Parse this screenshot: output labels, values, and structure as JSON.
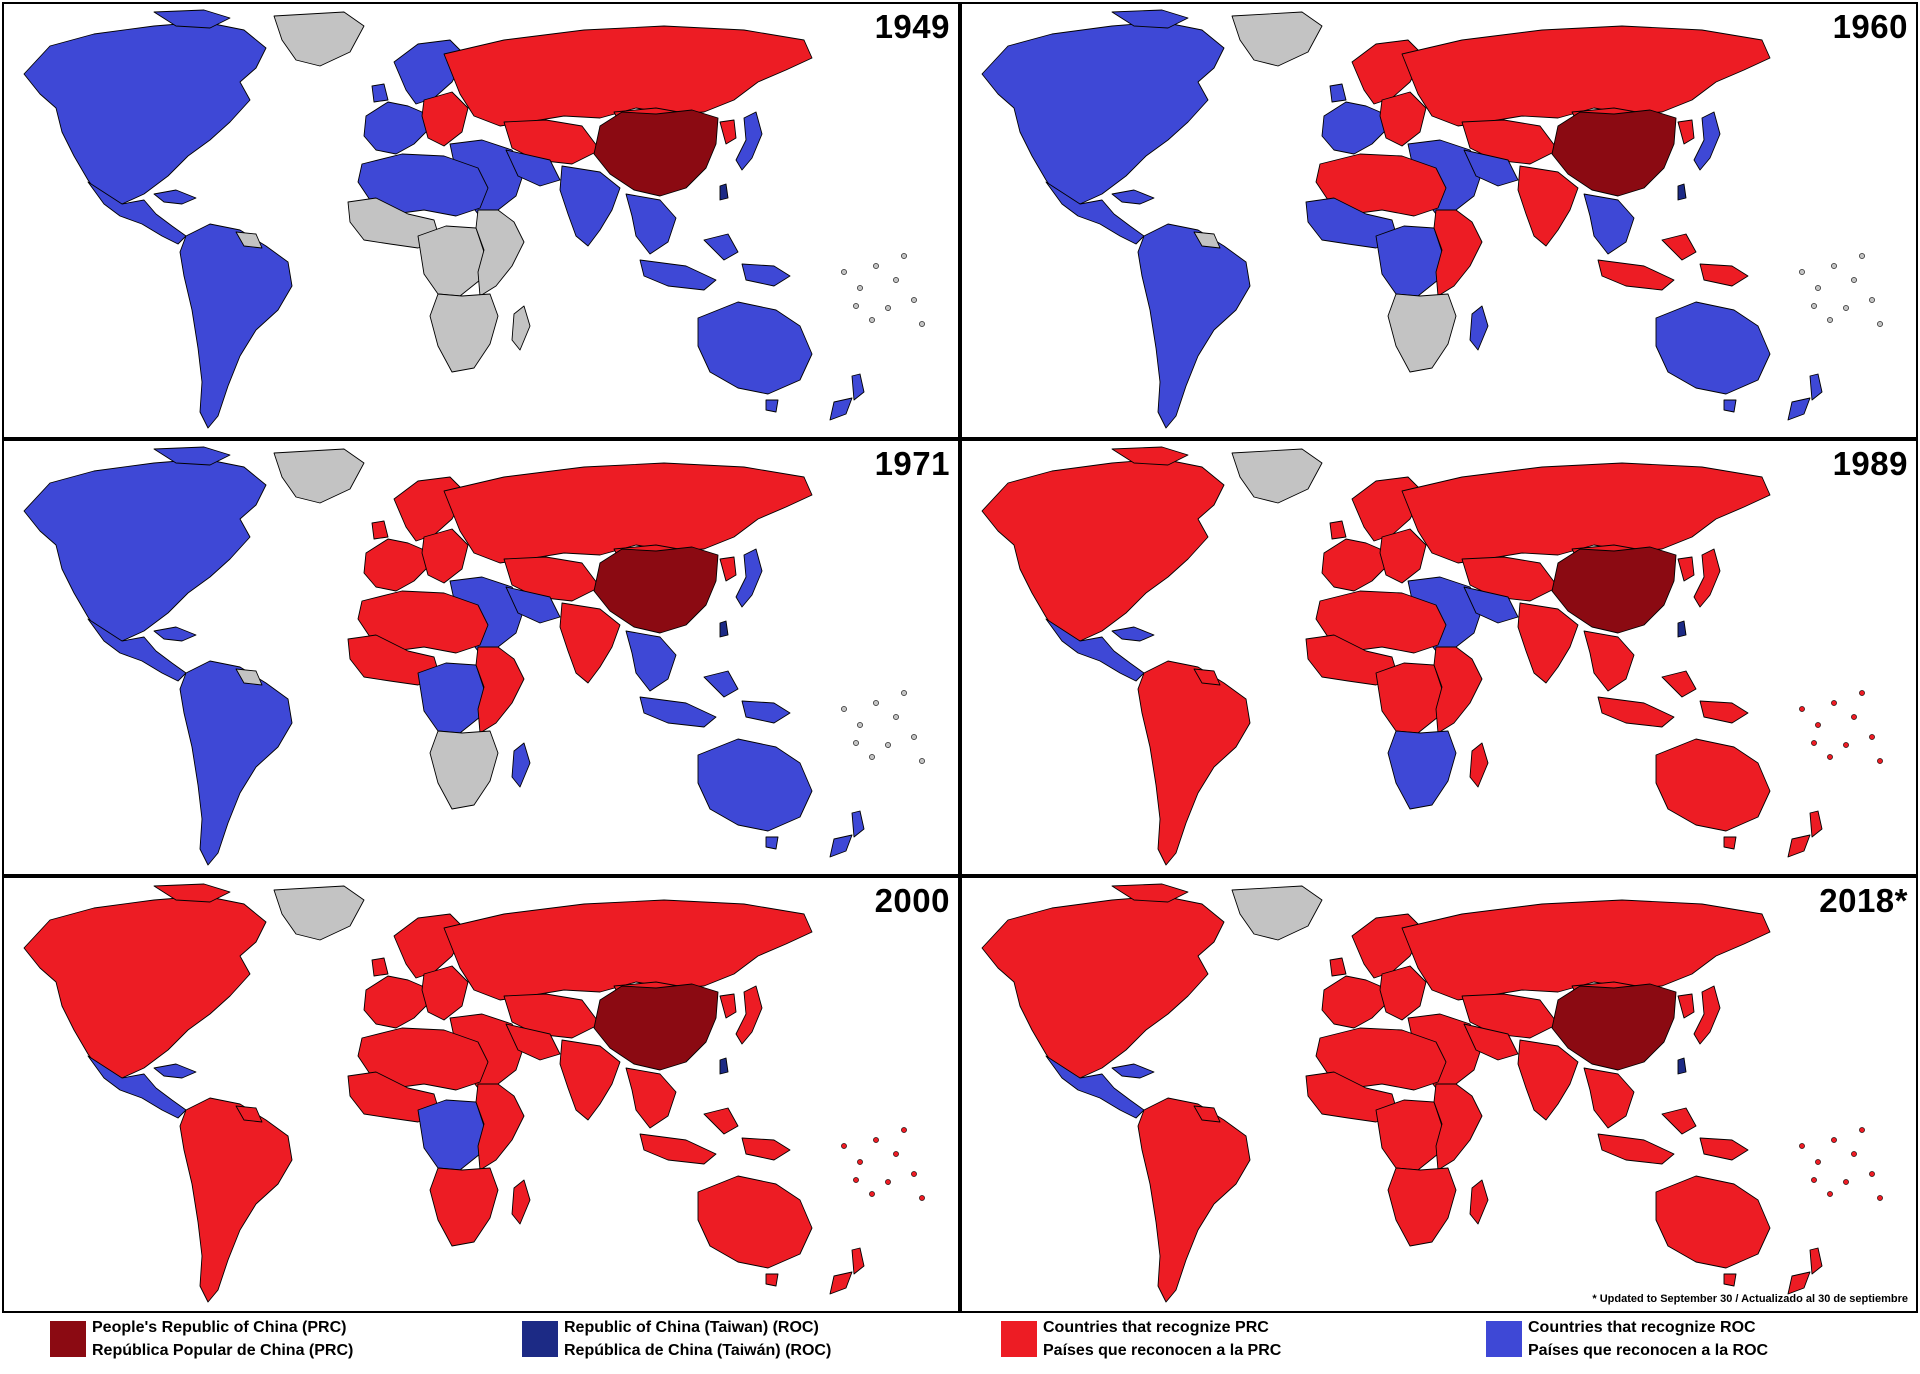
{
  "colors": {
    "prc": "#8b0a12",
    "roc": "#1c2a85",
    "recognize_prc": "#ed1c24",
    "recognize_roc": "#3e48d6",
    "none": "#c3c3c3",
    "border": "#000000"
  },
  "panels": [
    {
      "year": "1949",
      "regions": {
        "north_america": "recognize_roc",
        "greenland": "none",
        "mexico_central": "recognize_roc",
        "south_america": "recognize_roc",
        "guianas": "none",
        "europe_west": "recognize_roc",
        "scandinavia": "recognize_roc",
        "europe_east": "recognize_prc",
        "russia": "recognize_prc",
        "china": "prc",
        "taiwan": "roc",
        "mongolia": "recognize_prc",
        "korea_north": "recognize_prc",
        "japan": "recognize_roc",
        "middle_east": "recognize_roc",
        "central_asia": "recognize_prc",
        "india": "recognize_roc",
        "southeast_asia": "recognize_roc",
        "indonesia": "recognize_roc",
        "north_africa": "recognize_roc",
        "west_africa": "none",
        "central_africa": "none",
        "east_africa": "none",
        "southern_africa": "none",
        "madagascar": "none",
        "australia": "recognize_roc",
        "new_zealand": "recognize_roc",
        "pacific": "none"
      }
    },
    {
      "year": "1960",
      "regions": {
        "north_america": "recognize_roc",
        "greenland": "none",
        "mexico_central": "recognize_roc",
        "south_america": "recognize_roc",
        "guianas": "none",
        "europe_west": "recognize_roc",
        "scandinavia": "recognize_prc",
        "europe_east": "recognize_prc",
        "russia": "recognize_prc",
        "china": "prc",
        "taiwan": "roc",
        "mongolia": "recognize_prc",
        "korea_north": "recognize_prc",
        "japan": "recognize_roc",
        "middle_east": "recognize_roc",
        "central_asia": "recognize_prc",
        "india": "recognize_prc",
        "southeast_asia": "recognize_roc",
        "indonesia": "recognize_prc",
        "north_africa": "recognize_prc",
        "west_africa": "recognize_roc",
        "central_africa": "recognize_roc",
        "east_africa": "recognize_prc",
        "southern_africa": "none",
        "madagascar": "recognize_roc",
        "australia": "recognize_roc",
        "new_zealand": "recognize_roc",
        "pacific": "none"
      }
    },
    {
      "year": "1971",
      "regions": {
        "north_america": "recognize_roc",
        "greenland": "none",
        "mexico_central": "recognize_roc",
        "south_america": "recognize_roc",
        "guianas": "none",
        "europe_west": "recognize_prc",
        "scandinavia": "recognize_prc",
        "europe_east": "recognize_prc",
        "russia": "recognize_prc",
        "china": "prc",
        "taiwan": "roc",
        "mongolia": "recognize_prc",
        "korea_north": "recognize_prc",
        "japan": "recognize_roc",
        "middle_east": "recognize_roc",
        "central_asia": "recognize_prc",
        "india": "recognize_prc",
        "southeast_asia": "recognize_roc",
        "indonesia": "recognize_roc",
        "north_africa": "recognize_prc",
        "west_africa": "recognize_prc",
        "central_africa": "recognize_roc",
        "east_africa": "recognize_prc",
        "southern_africa": "none",
        "madagascar": "recognize_roc",
        "australia": "recognize_roc",
        "new_zealand": "recognize_roc",
        "pacific": "none"
      }
    },
    {
      "year": "1989",
      "regions": {
        "north_america": "recognize_prc",
        "greenland": "none",
        "mexico_central": "recognize_roc",
        "south_america": "recognize_prc",
        "guianas": "recognize_prc",
        "europe_west": "recognize_prc",
        "scandinavia": "recognize_prc",
        "europe_east": "recognize_prc",
        "russia": "recognize_prc",
        "china": "prc",
        "taiwan": "roc",
        "mongolia": "recognize_prc",
        "korea_north": "recognize_prc",
        "japan": "recognize_prc",
        "middle_east": "recognize_roc",
        "central_asia": "recognize_prc",
        "india": "recognize_prc",
        "southeast_asia": "recognize_prc",
        "indonesia": "recognize_prc",
        "north_africa": "recognize_prc",
        "west_africa": "recognize_prc",
        "central_africa": "recognize_prc",
        "east_africa": "recognize_prc",
        "southern_africa": "recognize_roc",
        "madagascar": "recognize_prc",
        "australia": "recognize_prc",
        "new_zealand": "recognize_prc",
        "pacific": "recognize_prc"
      }
    },
    {
      "year": "2000",
      "regions": {
        "north_america": "recognize_prc",
        "greenland": "none",
        "mexico_central": "recognize_roc",
        "south_america": "recognize_prc",
        "guianas": "recognize_prc",
        "europe_west": "recognize_prc",
        "scandinavia": "recognize_prc",
        "europe_east": "recognize_prc",
        "russia": "recognize_prc",
        "china": "prc",
        "taiwan": "roc",
        "mongolia": "recognize_prc",
        "korea_north": "recognize_prc",
        "japan": "recognize_prc",
        "middle_east": "recognize_prc",
        "central_asia": "recognize_prc",
        "india": "recognize_prc",
        "southeast_asia": "recognize_prc",
        "indonesia": "recognize_prc",
        "north_africa": "recognize_prc",
        "west_africa": "recognize_prc",
        "central_africa": "recognize_roc",
        "east_africa": "recognize_prc",
        "southern_africa": "recognize_prc",
        "madagascar": "recognize_prc",
        "australia": "recognize_prc",
        "new_zealand": "recognize_prc",
        "pacific": "recognize_prc"
      }
    },
    {
      "year": "2018*",
      "footnote": "* Updated to September 30 / Actualizado al 30 de septiembre",
      "regions": {
        "north_america": "recognize_prc",
        "greenland": "none",
        "mexico_central": "recognize_roc",
        "south_america": "recognize_prc",
        "guianas": "recognize_prc",
        "europe_west": "recognize_prc",
        "scandinavia": "recognize_prc",
        "europe_east": "recognize_prc",
        "russia": "recognize_prc",
        "china": "prc",
        "taiwan": "roc",
        "mongolia": "recognize_prc",
        "korea_north": "recognize_prc",
        "japan": "recognize_prc",
        "middle_east": "recognize_prc",
        "central_asia": "recognize_prc",
        "india": "recognize_prc",
        "southeast_asia": "recognize_prc",
        "indonesia": "recognize_prc",
        "north_africa": "recognize_prc",
        "west_africa": "recognize_prc",
        "central_africa": "recognize_prc",
        "east_africa": "recognize_prc",
        "southern_africa": "recognize_prc",
        "madagascar": "recognize_prc",
        "australia": "recognize_prc",
        "new_zealand": "recognize_prc",
        "pacific": "recognize_prc"
      }
    }
  ],
  "legend": [
    {
      "key": "prc",
      "line1": "People's Republic of China (PRC)",
      "line2": "República Popular de China (PRC)"
    },
    {
      "key": "roc",
      "line1": "Republic of China (Taiwan) (ROC)",
      "line2": "República de China (Taiwán) (ROC)"
    },
    {
      "key": "recognize_prc",
      "line1": "Countries that recognize PRC",
      "line2": "Países que reconocen a la PRC"
    },
    {
      "key": "recognize_roc",
      "line1": "Countries that recognize ROC",
      "line2": "Países que reconocen a la ROC"
    }
  ]
}
